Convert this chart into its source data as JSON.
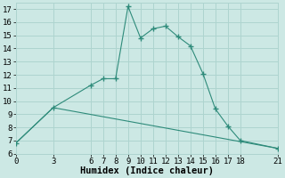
{
  "xlabel": "Humidex (Indice chaleur)",
  "line1_x": [
    0,
    3,
    6,
    7,
    8,
    9,
    10,
    11,
    12,
    13,
    14,
    15,
    16,
    17,
    18,
    21
  ],
  "line1_y": [
    6.8,
    9.5,
    11.2,
    11.7,
    11.7,
    17.2,
    14.8,
    15.5,
    15.7,
    14.9,
    14.2,
    12.1,
    9.4,
    8.1,
    7.0,
    6.4
  ],
  "line2_x": [
    0,
    3,
    21
  ],
  "line2_y": [
    6.8,
    9.5,
    6.4
  ],
  "line_color": "#2e8b7a",
  "bg_color": "#cce8e4",
  "grid_color": "#aed4cf",
  "xlim": [
    0,
    21
  ],
  "ylim": [
    6,
    17.5
  ],
  "xticks": [
    0,
    3,
    6,
    7,
    8,
    9,
    10,
    11,
    12,
    13,
    14,
    15,
    16,
    17,
    18,
    21
  ],
  "yticks": [
    6,
    7,
    8,
    9,
    10,
    11,
    12,
    13,
    14,
    15,
    16,
    17
  ],
  "tick_fontsize": 6.5,
  "label_fontsize": 7.5
}
